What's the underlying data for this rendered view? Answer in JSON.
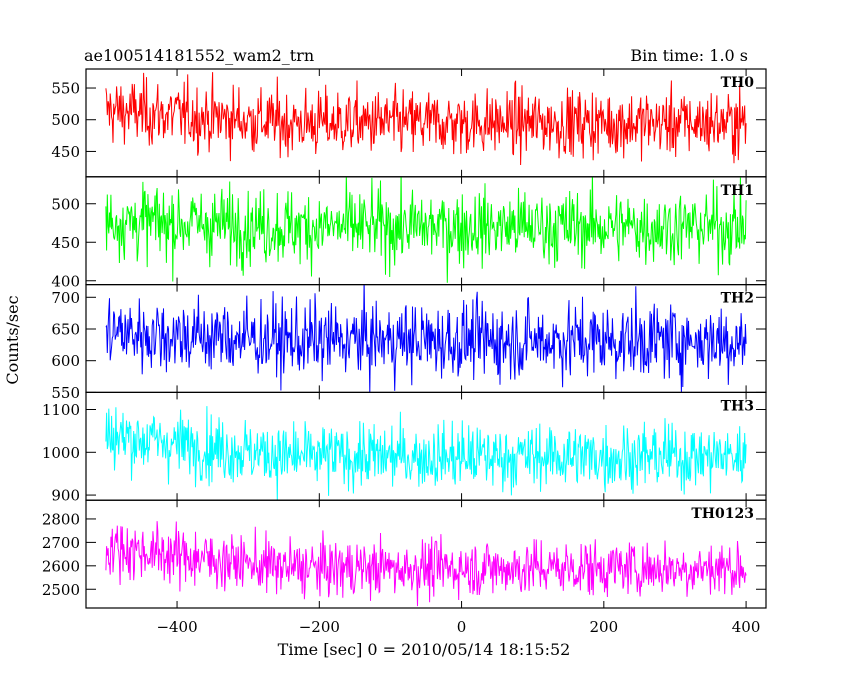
{
  "header": {
    "title": "ae100514181552_wam2_trn",
    "bin_time": "Bin time: 1.0 s"
  },
  "chart_data": {
    "type": "line",
    "xlabel": "Time [sec] 0 = 2010/05/14 18:15:52",
    "ylabel": "Counts/sec",
    "x_range": [
      -500,
      400
    ],
    "xlim": [
      -528,
      428
    ],
    "xticks": [
      -400,
      -200,
      0,
      200,
      400
    ],
    "xtick_labels": [
      "−400",
      "−200",
      "0",
      "200",
      "400"
    ],
    "bin_time_s": 1.0,
    "panels": [
      {
        "name": "TH0",
        "color": "#ff0000",
        "ylim": [
          410,
          580
        ],
        "yticks": [
          450,
          500,
          550
        ],
        "ytick_labels": [
          "450",
          "500",
          "550"
        ],
        "mean": 495,
        "spread": 26,
        "start_mean": 515
      },
      {
        "name": "TH1",
        "color": "#00ff00",
        "ylim": [
          395,
          535
        ],
        "yticks": [
          400,
          450,
          500
        ],
        "ytick_labels": [
          "400",
          "450",
          "500"
        ],
        "mean": 470,
        "spread": 24,
        "start_mean": 478
      },
      {
        "name": "TH2",
        "color": "#0000ff",
        "ylim": [
          550,
          720
        ],
        "yticks": [
          550,
          600,
          650,
          700
        ],
        "ytick_labels": [
          "550",
          "600",
          "650",
          "700"
        ],
        "mean": 632,
        "spread": 30,
        "start_mean": 645
      },
      {
        "name": "TH3",
        "color": "#00ffff",
        "ylim": [
          888,
          1140
        ],
        "yticks": [
          900,
          1000,
          1100
        ],
        "ytick_labels": [
          "900",
          "1000",
          "1100"
        ],
        "mean": 990,
        "spread": 38,
        "start_mean": 1040
      },
      {
        "name": "TH0123",
        "color": "#ff00ff",
        "ylim": [
          2420,
          2880
        ],
        "yticks": [
          2500,
          2600,
          2700,
          2800
        ],
        "ytick_labels": [
          "2500",
          "2600",
          "2700",
          "2800"
        ],
        "mean": 2590,
        "spread": 60,
        "start_mean": 2680
      }
    ]
  }
}
